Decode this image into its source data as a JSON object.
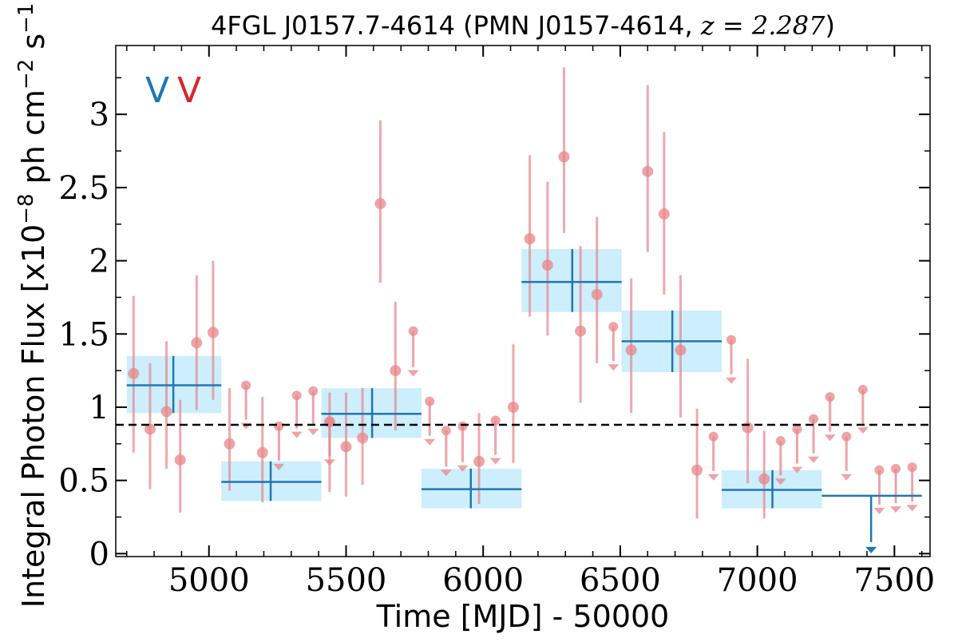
{
  "chart_data": {
    "type": "scatter",
    "title": "4FGL J0157.7-4614 (PMN J0157-4614, ",
    "title_math": "z = 2.287",
    "title_close": ")",
    "xlabel": "Time [MJD] - 50000",
    "ylabel": "Integral Photon Flux [x10",
    "ylabel_exp": "−8",
    "ylabel_unit": " ph cm",
    "ylabel_unit_exp": "−2",
    "ylabel_s": " s",
    "ylabel_s_exp": "−1",
    "ylabel_close": "]",
    "xlim": [
      4660,
      7630
    ],
    "ylim": [
      -0.02,
      3.47
    ],
    "xticks": [
      {
        "value": 5000,
        "label": "5000"
      },
      {
        "value": 5500,
        "label": "5500"
      },
      {
        "value": 6000,
        "label": "6000"
      },
      {
        "value": 6500,
        "label": "6500"
      },
      {
        "value": 7000,
        "label": "7000"
      },
      {
        "value": 7500,
        "label": "7500"
      }
    ],
    "yticks": [
      {
        "value": 0,
        "label": "0"
      },
      {
        "value": 0.5,
        "label": "0.5"
      },
      {
        "value": 1,
        "label": "1"
      },
      {
        "value": 1.5,
        "label": "1.5"
      },
      {
        "value": 2,
        "label": "2"
      },
      {
        "value": 2.5,
        "label": "2.5"
      },
      {
        "value": 3,
        "label": "3"
      }
    ],
    "reference_line": {
      "y": 0.88,
      "style": "dashed",
      "color": "#000000"
    },
    "series_tags": [
      {
        "text": "V",
        "color": "#1f77b4"
      },
      {
        "text": "V",
        "color": "#d62728"
      }
    ],
    "binned_series": {
      "color": "#1f77b4",
      "band_color": "#cdeefc",
      "points": [
        {
          "x0": 4700,
          "x1": 5045,
          "y": 1.15,
          "ylo": 0.96,
          "yhi": 1.35,
          "xc": 4870
        },
        {
          "x0": 5045,
          "x1": 5410,
          "y": 0.49,
          "ylo": 0.36,
          "yhi": 0.63,
          "xc": 5225
        },
        {
          "x0": 5410,
          "x1": 5775,
          "y": 0.955,
          "ylo": 0.79,
          "yhi": 1.13,
          "xc": 5595
        },
        {
          "x0": 5775,
          "x1": 6140,
          "y": 0.44,
          "ylo": 0.31,
          "yhi": 0.58,
          "xc": 5955
        },
        {
          "x0": 6140,
          "x1": 6505,
          "y": 1.855,
          "ylo": 1.65,
          "yhi": 2.08,
          "xc": 6325
        },
        {
          "x0": 6505,
          "x1": 6870,
          "y": 1.45,
          "ylo": 1.24,
          "yhi": 1.66,
          "xc": 6690
        },
        {
          "x0": 6870,
          "x1": 7235,
          "y": 0.435,
          "ylo": 0.31,
          "yhi": 0.57,
          "xc": 7055
        }
      ],
      "upper_limits": [
        {
          "x0": 7235,
          "x1": 7600,
          "y": 0.395,
          "xc": 7415
        }
      ]
    },
    "fine_series": {
      "color": "#e8858a",
      "points": [
        {
          "x": 4725,
          "y": 1.23,
          "ylo": 0.69,
          "yhi": 1.76
        },
        {
          "x": 4785,
          "y": 0.85,
          "ylo": 0.44,
          "yhi": 1.3
        },
        {
          "x": 4845,
          "y": 0.97,
          "ylo": 0.58,
          "yhi": 1.45
        },
        {
          "x": 4895,
          "y": 0.64,
          "ylo": 0.28,
          "yhi": 1.05
        },
        {
          "x": 4955,
          "y": 1.44,
          "ylo": 0.98,
          "yhi": 1.9
        },
        {
          "x": 5015,
          "y": 1.51,
          "ylo": 1.05,
          "yhi": 2.0
        },
        {
          "x": 5075,
          "y": 0.75,
          "ylo": 0.43,
          "yhi": 1.13
        },
        {
          "x": 5195,
          "y": 0.69,
          "ylo": 0.35,
          "yhi": 1.07
        },
        {
          "x": 5440,
          "y": 0.9,
          "ylo": 0.42,
          "yhi": 1.1
        },
        {
          "x": 5500,
          "y": 0.73,
          "ylo": 0.39,
          "yhi": 1.1
        },
        {
          "x": 5560,
          "y": 0.79,
          "ylo": 0.47,
          "yhi": 1.13
        },
        {
          "x": 5625,
          "y": 2.39,
          "ylo": 1.85,
          "yhi": 2.96
        },
        {
          "x": 5680,
          "y": 1.25,
          "ylo": 0.84,
          "yhi": 1.72
        },
        {
          "x": 5985,
          "y": 0.63,
          "ylo": 0.34,
          "yhi": 0.96
        },
        {
          "x": 6110,
          "y": 1.0,
          "ylo": 0.62,
          "yhi": 1.43
        },
        {
          "x": 6170,
          "y": 2.15,
          "ylo": 1.62,
          "yhi": 2.72
        },
        {
          "x": 6235,
          "y": 1.97,
          "ylo": 1.49,
          "yhi": 2.54
        },
        {
          "x": 6295,
          "y": 2.71,
          "ylo": 2.19,
          "yhi": 3.32
        },
        {
          "x": 6355,
          "y": 1.52,
          "ylo": 1.03,
          "yhi": 2.1
        },
        {
          "x": 6415,
          "y": 1.77,
          "ylo": 1.3,
          "yhi": 2.3
        },
        {
          "x": 6540,
          "y": 1.39,
          "ylo": 0.96,
          "yhi": 1.88
        },
        {
          "x": 6600,
          "y": 2.61,
          "ylo": 2.06,
          "yhi": 3.2
        },
        {
          "x": 6660,
          "y": 2.32,
          "ylo": 1.77,
          "yhi": 2.88
        },
        {
          "x": 6720,
          "y": 1.39,
          "ylo": 0.93,
          "yhi": 1.9
        },
        {
          "x": 6780,
          "y": 0.57,
          "ylo": 0.24,
          "yhi": 0.99
        },
        {
          "x": 6965,
          "y": 0.86,
          "ylo": 0.48,
          "yhi": 1.33
        },
        {
          "x": 7025,
          "y": 0.51,
          "ylo": 0.24,
          "yhi": 0.84
        }
      ],
      "upper_limits": [
        {
          "x": 5135,
          "y": 1.15,
          "to": 0.86
        },
        {
          "x": 5255,
          "y": 0.87,
          "to": 0.58
        },
        {
          "x": 5320,
          "y": 1.08,
          "to": 0.8
        },
        {
          "x": 5380,
          "y": 1.11,
          "to": 0.82
        },
        {
          "x": 5440,
          "y": 0.9,
          "to": 0.61
        },
        {
          "x": 5745,
          "y": 1.52,
          "to": 1.22
        },
        {
          "x": 5805,
          "y": 1.04,
          "to": 0.75
        },
        {
          "x": 5865,
          "y": 0.84,
          "to": 0.54
        },
        {
          "x": 5925,
          "y": 0.87,
          "to": 0.57
        },
        {
          "x": 6045,
          "y": 0.91,
          "to": 0.62
        },
        {
          "x": 6475,
          "y": 1.55,
          "to": 1.26
        },
        {
          "x": 6840,
          "y": 0.8,
          "to": 0.51
        },
        {
          "x": 6905,
          "y": 1.46,
          "to": 1.17
        },
        {
          "x": 7085,
          "y": 0.77,
          "to": 0.48
        },
        {
          "x": 7145,
          "y": 0.85,
          "to": 0.56
        },
        {
          "x": 7205,
          "y": 0.92,
          "to": 0.63
        },
        {
          "x": 7265,
          "y": 1.07,
          "to": 0.78
        },
        {
          "x": 7325,
          "y": 0.8,
          "to": 0.51
        },
        {
          "x": 7385,
          "y": 1.12,
          "to": 0.83
        },
        {
          "x": 7445,
          "y": 0.57,
          "to": 0.28
        },
        {
          "x": 7505,
          "y": 0.58,
          "to": 0.29
        },
        {
          "x": 7565,
          "y": 0.59,
          "to": 0.3
        }
      ]
    }
  }
}
